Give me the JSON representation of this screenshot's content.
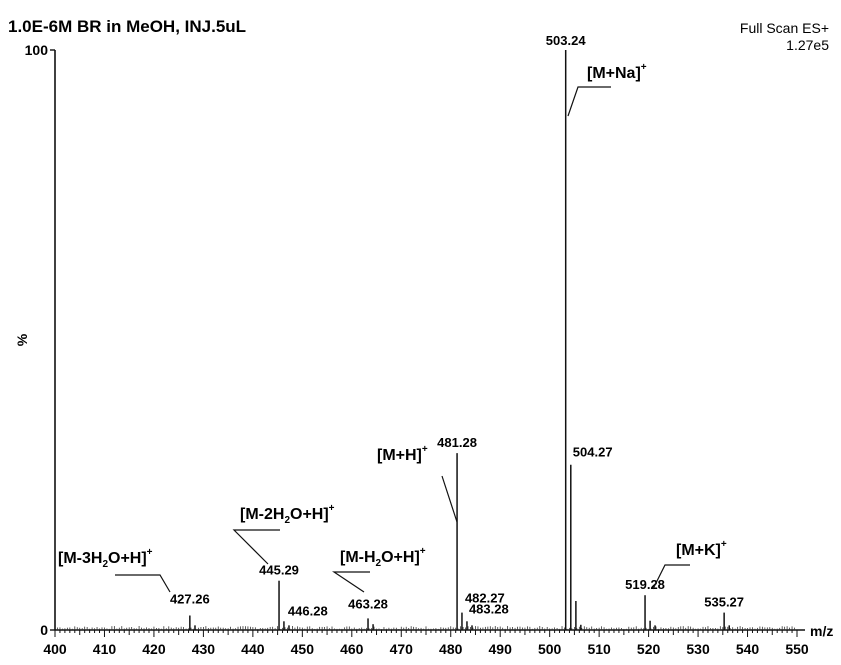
{
  "chart_data": {
    "type": "bar",
    "title": "1.0E-6M BR in MeOH, INJ.5uL",
    "scan_info": [
      "Full Scan ES+",
      "1.27e5"
    ],
    "xlabel": "m/z",
    "ylabel": "%",
    "xlim": [
      400,
      550
    ],
    "ylim": [
      0,
      100
    ],
    "x_ticks": [
      400,
      410,
      420,
      430,
      440,
      450,
      460,
      470,
      480,
      490,
      500,
      510,
      520,
      530,
      540,
      550
    ],
    "y_ticks": [
      0,
      100
    ],
    "peaks": [
      {
        "mz": 503.24,
        "intensity": 100,
        "label": "503.24"
      },
      {
        "mz": 481.28,
        "intensity": 30.5,
        "label": "481.28"
      },
      {
        "mz": 504.27,
        "intensity": 28.5,
        "label": "504.27"
      },
      {
        "mz": 445.29,
        "intensity": 8.5,
        "label": "445.29"
      },
      {
        "mz": 519.28,
        "intensity": 6,
        "label": "519.28"
      },
      {
        "mz": 463.28,
        "intensity": 2,
        "label": "463.28"
      },
      {
        "mz": 427.26,
        "intensity": 2.5,
        "label": "427.26"
      },
      {
        "mz": 482.27,
        "intensity": 3,
        "label": "482.27"
      },
      {
        "mz": 446.28,
        "intensity": 1.5,
        "label": "446.28"
      },
      {
        "mz": 483.28,
        "intensity": 1.5,
        "label": "483.28"
      },
      {
        "mz": 535.27,
        "intensity": 3,
        "label": "535.27"
      },
      {
        "mz": 505.3,
        "intensity": 5,
        "label": ""
      },
      {
        "mz": 484.3,
        "intensity": 0.8,
        "label": ""
      },
      {
        "mz": 520.3,
        "intensity": 1.6,
        "label": ""
      },
      {
        "mz": 521.3,
        "intensity": 0.8,
        "label": ""
      },
      {
        "mz": 464.3,
        "intensity": 1,
        "label": ""
      },
      {
        "mz": 428.3,
        "intensity": 0.8,
        "label": ""
      },
      {
        "mz": 447.3,
        "intensity": 0.8,
        "label": ""
      },
      {
        "mz": 506.3,
        "intensity": 0.9,
        "label": ""
      },
      {
        "mz": 536.3,
        "intensity": 0.8,
        "label": ""
      }
    ],
    "annotations": [
      {
        "main": "[M+Na]",
        "sup": "+",
        "sub": "",
        "mz": 503.24
      },
      {
        "main": "[M+H]",
        "sup": "+",
        "sub": "",
        "mz": 481.28
      },
      {
        "main": "[M-2H",
        "sub": "2",
        "rest": "O+H]",
        "sup": "+",
        "mz": 445.29
      },
      {
        "main": "[M-H",
        "sub": "2",
        "rest": "O+H]",
        "sup": "+",
        "mz": 463.28
      },
      {
        "main": "[M-3H",
        "sub": "2",
        "rest": "O+H]",
        "sup": "+",
        "mz": 427.26
      },
      {
        "main": "[M+K]",
        "sup": "+",
        "sub": "",
        "mz": 519.28
      }
    ]
  }
}
